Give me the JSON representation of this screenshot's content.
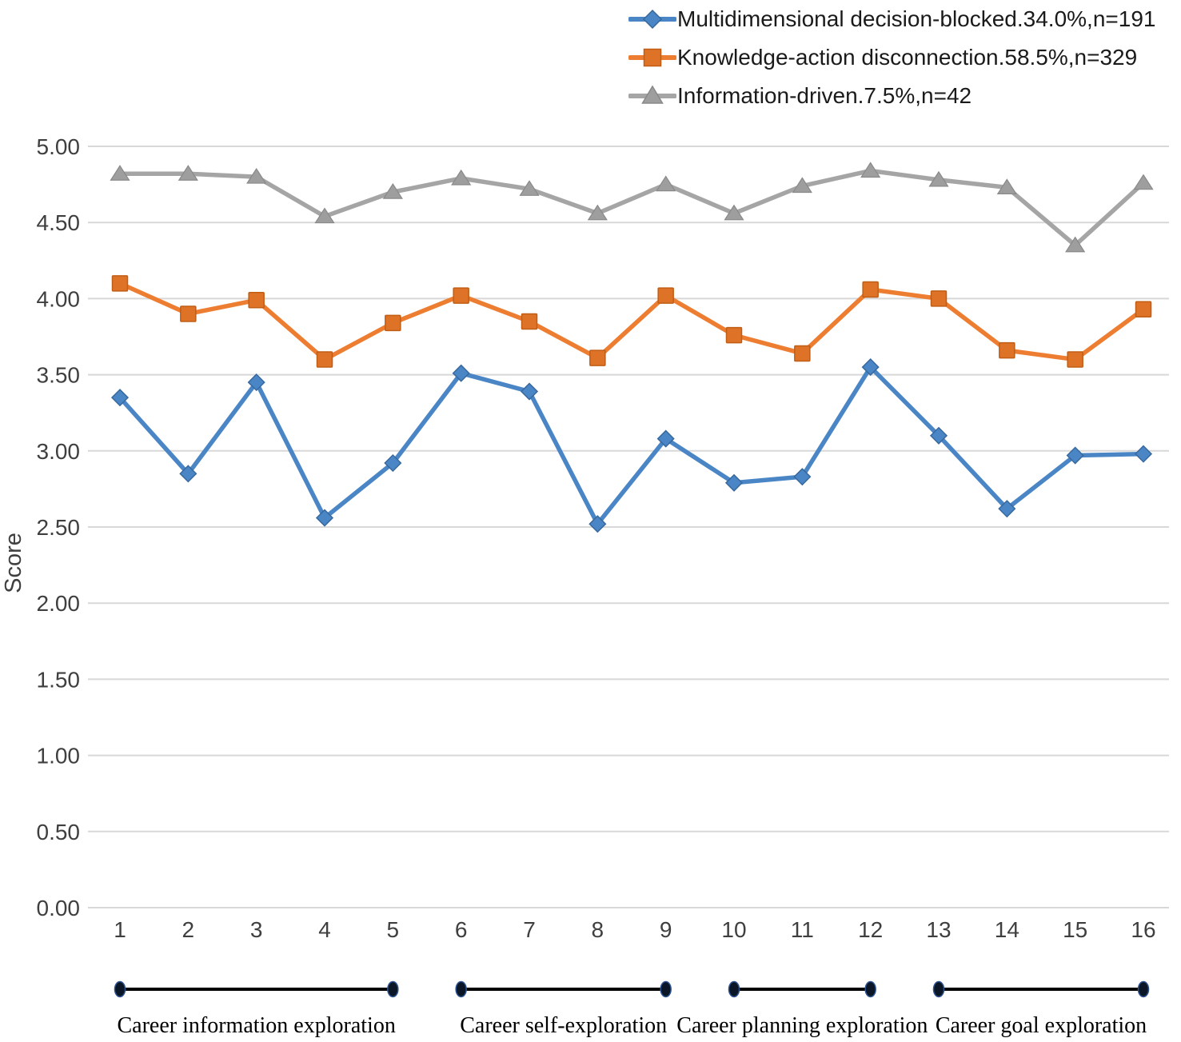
{
  "chart_data": {
    "type": "line",
    "title": "",
    "xlabel": "",
    "ylabel": "Score",
    "ylim": [
      0,
      5
    ],
    "ytick_step": 0.5,
    "ytick_labels": [
      "0.00",
      "0.50",
      "1.00",
      "1.50",
      "2.00",
      "2.50",
      "3.00",
      "3.50",
      "4.00",
      "4.50",
      "5.00"
    ],
    "xtick_labels": [
      "1",
      "2",
      "3",
      "4",
      "5",
      "6",
      "7",
      "8",
      "9",
      "10",
      "11",
      "12",
      "13",
      "14",
      "15",
      "16"
    ],
    "grid": true,
    "legend_position": "top-right",
    "series": [
      {
        "name": "Multidimensional decision-blocked.34.0%,n=191",
        "marker": "diamond",
        "color": "#4A86C6",
        "marker_fill": "#4A86C6",
        "marker_stroke": "#38699E",
        "values": [
          3.35,
          2.85,
          3.45,
          2.56,
          2.92,
          3.51,
          3.39,
          2.52,
          3.08,
          2.79,
          2.83,
          3.55,
          3.1,
          2.62,
          2.97,
          2.98
        ]
      },
      {
        "name": "Knowledge-action disconnection.58.5%,n=329",
        "marker": "square",
        "color": "#ED7D31",
        "marker_fill": "#DE7226",
        "marker_stroke": "#C05E16",
        "values": [
          4.1,
          3.9,
          3.99,
          3.6,
          3.84,
          4.02,
          3.85,
          3.61,
          4.02,
          3.76,
          3.64,
          4.06,
          4.0,
          3.66,
          3.6,
          3.93
        ]
      },
      {
        "name": "Information-driven.7.5%,n=42",
        "marker": "triangle",
        "color": "#A5A5A5",
        "marker_fill": "#9E9E9E",
        "marker_stroke": "#898989",
        "values": [
          4.82,
          4.82,
          4.8,
          4.54,
          4.7,
          4.79,
          4.72,
          4.56,
          4.75,
          4.56,
          4.74,
          4.84,
          4.78,
          4.73,
          4.35,
          4.76
        ]
      }
    ],
    "group_brackets": [
      {
        "label": "Career information exploration",
        "from": 1,
        "to": 5
      },
      {
        "label": "Career self-exploration",
        "from": 6,
        "to": 9
      },
      {
        "label": "Career planning exploration",
        "from": 10,
        "to": 12
      },
      {
        "label": "Career goal exploration",
        "from": 13,
        "to": 16
      }
    ],
    "colors": {
      "gridline": "#D8D8D8",
      "axis_text": "#3F3F3F",
      "bracket_line": "#000000",
      "bracket_dot_fill": "#0B1626",
      "bracket_dot_stroke": "#2D5490",
      "bracket_label": "#000000"
    }
  }
}
